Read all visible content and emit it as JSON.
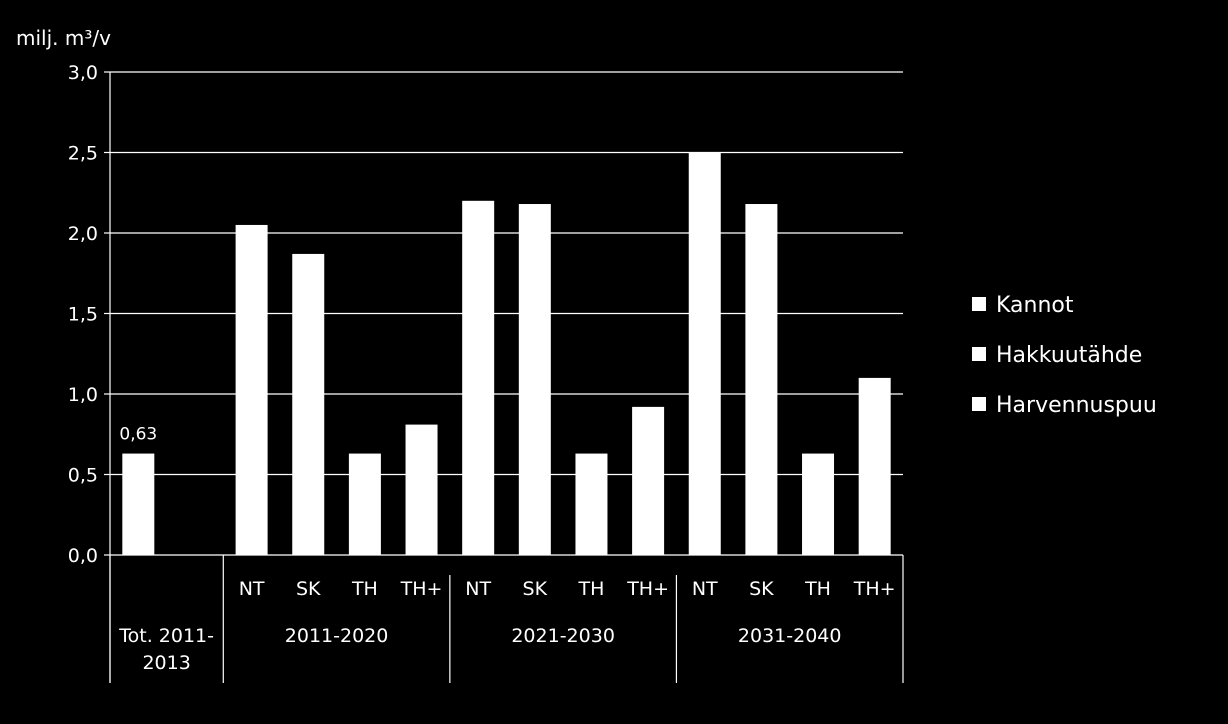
{
  "chart_data": {
    "type": "bar",
    "title": "",
    "ylabel": "milj. m³/v",
    "xlabel": "",
    "ylim": [
      0,
      3.0
    ],
    "y_ticks": [
      {
        "value": 0.0,
        "label": "0,0"
      },
      {
        "value": 0.5,
        "label": "0,5"
      },
      {
        "value": 1.0,
        "label": "1,0"
      },
      {
        "value": 1.5,
        "label": "1,5"
      },
      {
        "value": 2.0,
        "label": "2,0"
      },
      {
        "value": 2.5,
        "label": "2,5"
      },
      {
        "value": 3.0,
        "label": "3,0"
      }
    ],
    "grid": true,
    "groups": [
      {
        "label_lines": [
          "Tot. 2011-",
          "2013"
        ],
        "categories": [
          ""
        ]
      },
      {
        "label_lines": [
          "2011-2020"
        ],
        "categories": [
          "NT",
          "SK",
          "TH",
          "TH+"
        ]
      },
      {
        "label_lines": [
          "2021-2030"
        ],
        "categories": [
          "NT",
          "SK",
          "TH",
          "TH+"
        ]
      },
      {
        "label_lines": [
          "2031-2040"
        ],
        "categories": [
          "NT",
          "SK",
          "TH",
          "TH+"
        ]
      }
    ],
    "values": [
      0.63,
      null,
      2.05,
      1.87,
      0.63,
      0.81,
      2.2,
      2.18,
      0.63,
      0.92,
      2.5,
      2.18,
      0.63,
      1.1
    ],
    "data_labels": [
      {
        "index": 0,
        "text": "0,63"
      }
    ],
    "legend": {
      "position": "right",
      "entries": [
        "Kannot",
        "Hakkuutähde",
        "Harvennuspuu"
      ]
    },
    "colors": {
      "background": "#000000",
      "bar": "#ffffff",
      "axis": "#ffffff",
      "grid": "#ffffff",
      "text": "#ffffff"
    }
  }
}
